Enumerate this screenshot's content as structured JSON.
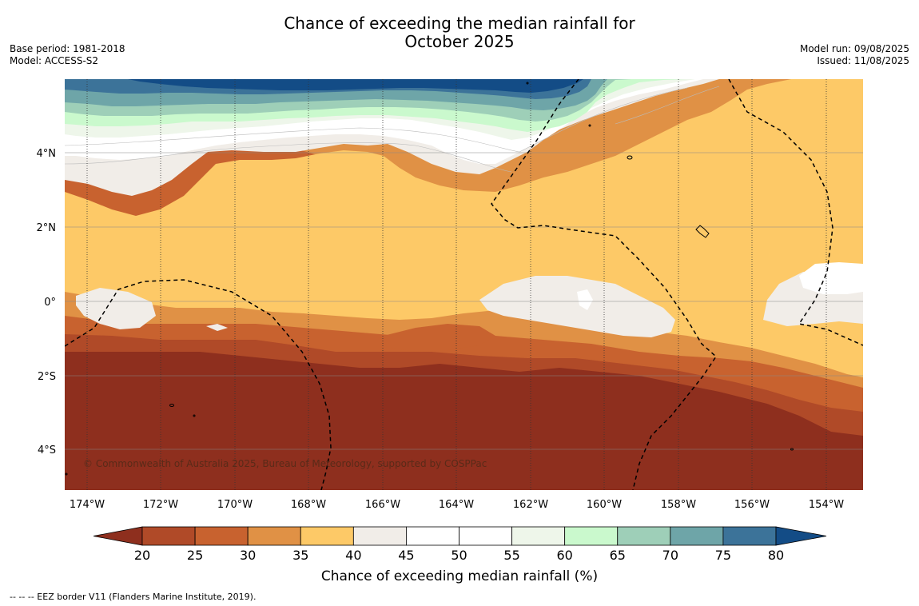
{
  "title_line1": "Chance of exceeding the median rainfall for",
  "title_line2": "October 2025",
  "base_period": "Base period: 1981-2018",
  "model": "Model: ACCESS-S2",
  "model_run": "Model run: 09/08/2025",
  "issued": "Issued: 11/08/2025",
  "copyright": "© Commonwealth of Australia 2025, Bureau of Meteorology, supported by COSPPac",
  "footnote": "--  --  -- EEZ border V11 (Flanders Marine Institute, 2019).",
  "lat_labels": [
    "4°N",
    "2°N",
    "0°",
    "2°S",
    "4°S"
  ],
  "lon_labels": [
    "174°W",
    "172°W",
    "170°W",
    "168°W",
    "166°W",
    "164°W",
    "162°W",
    "160°W",
    "158°W",
    "156°W",
    "154°W"
  ],
  "colorbar": {
    "title": "Chance of exceeding median rainfall (%)",
    "ticks": [
      "20",
      "25",
      "30",
      "35",
      "40",
      "45",
      "50",
      "55",
      "60",
      "65",
      "70",
      "75",
      "80"
    ],
    "colors": {
      "below_20": "#8e2f1e",
      "20_25": "#b04a28",
      "25_30": "#c8622f",
      "30_35": "#e09145",
      "35_40": "#fdc967",
      "40_45": "#f1ede8",
      "45_50": "#ffffff",
      "50_55": "#ffffff",
      "55_60": "#eef6ea",
      "60_65": "#caf9cd",
      "65_70": "#9ecfb8",
      "70_75": "#6ea5a8",
      "75_80": "#3c7399",
      "above_80": "#134c86"
    }
  }
}
